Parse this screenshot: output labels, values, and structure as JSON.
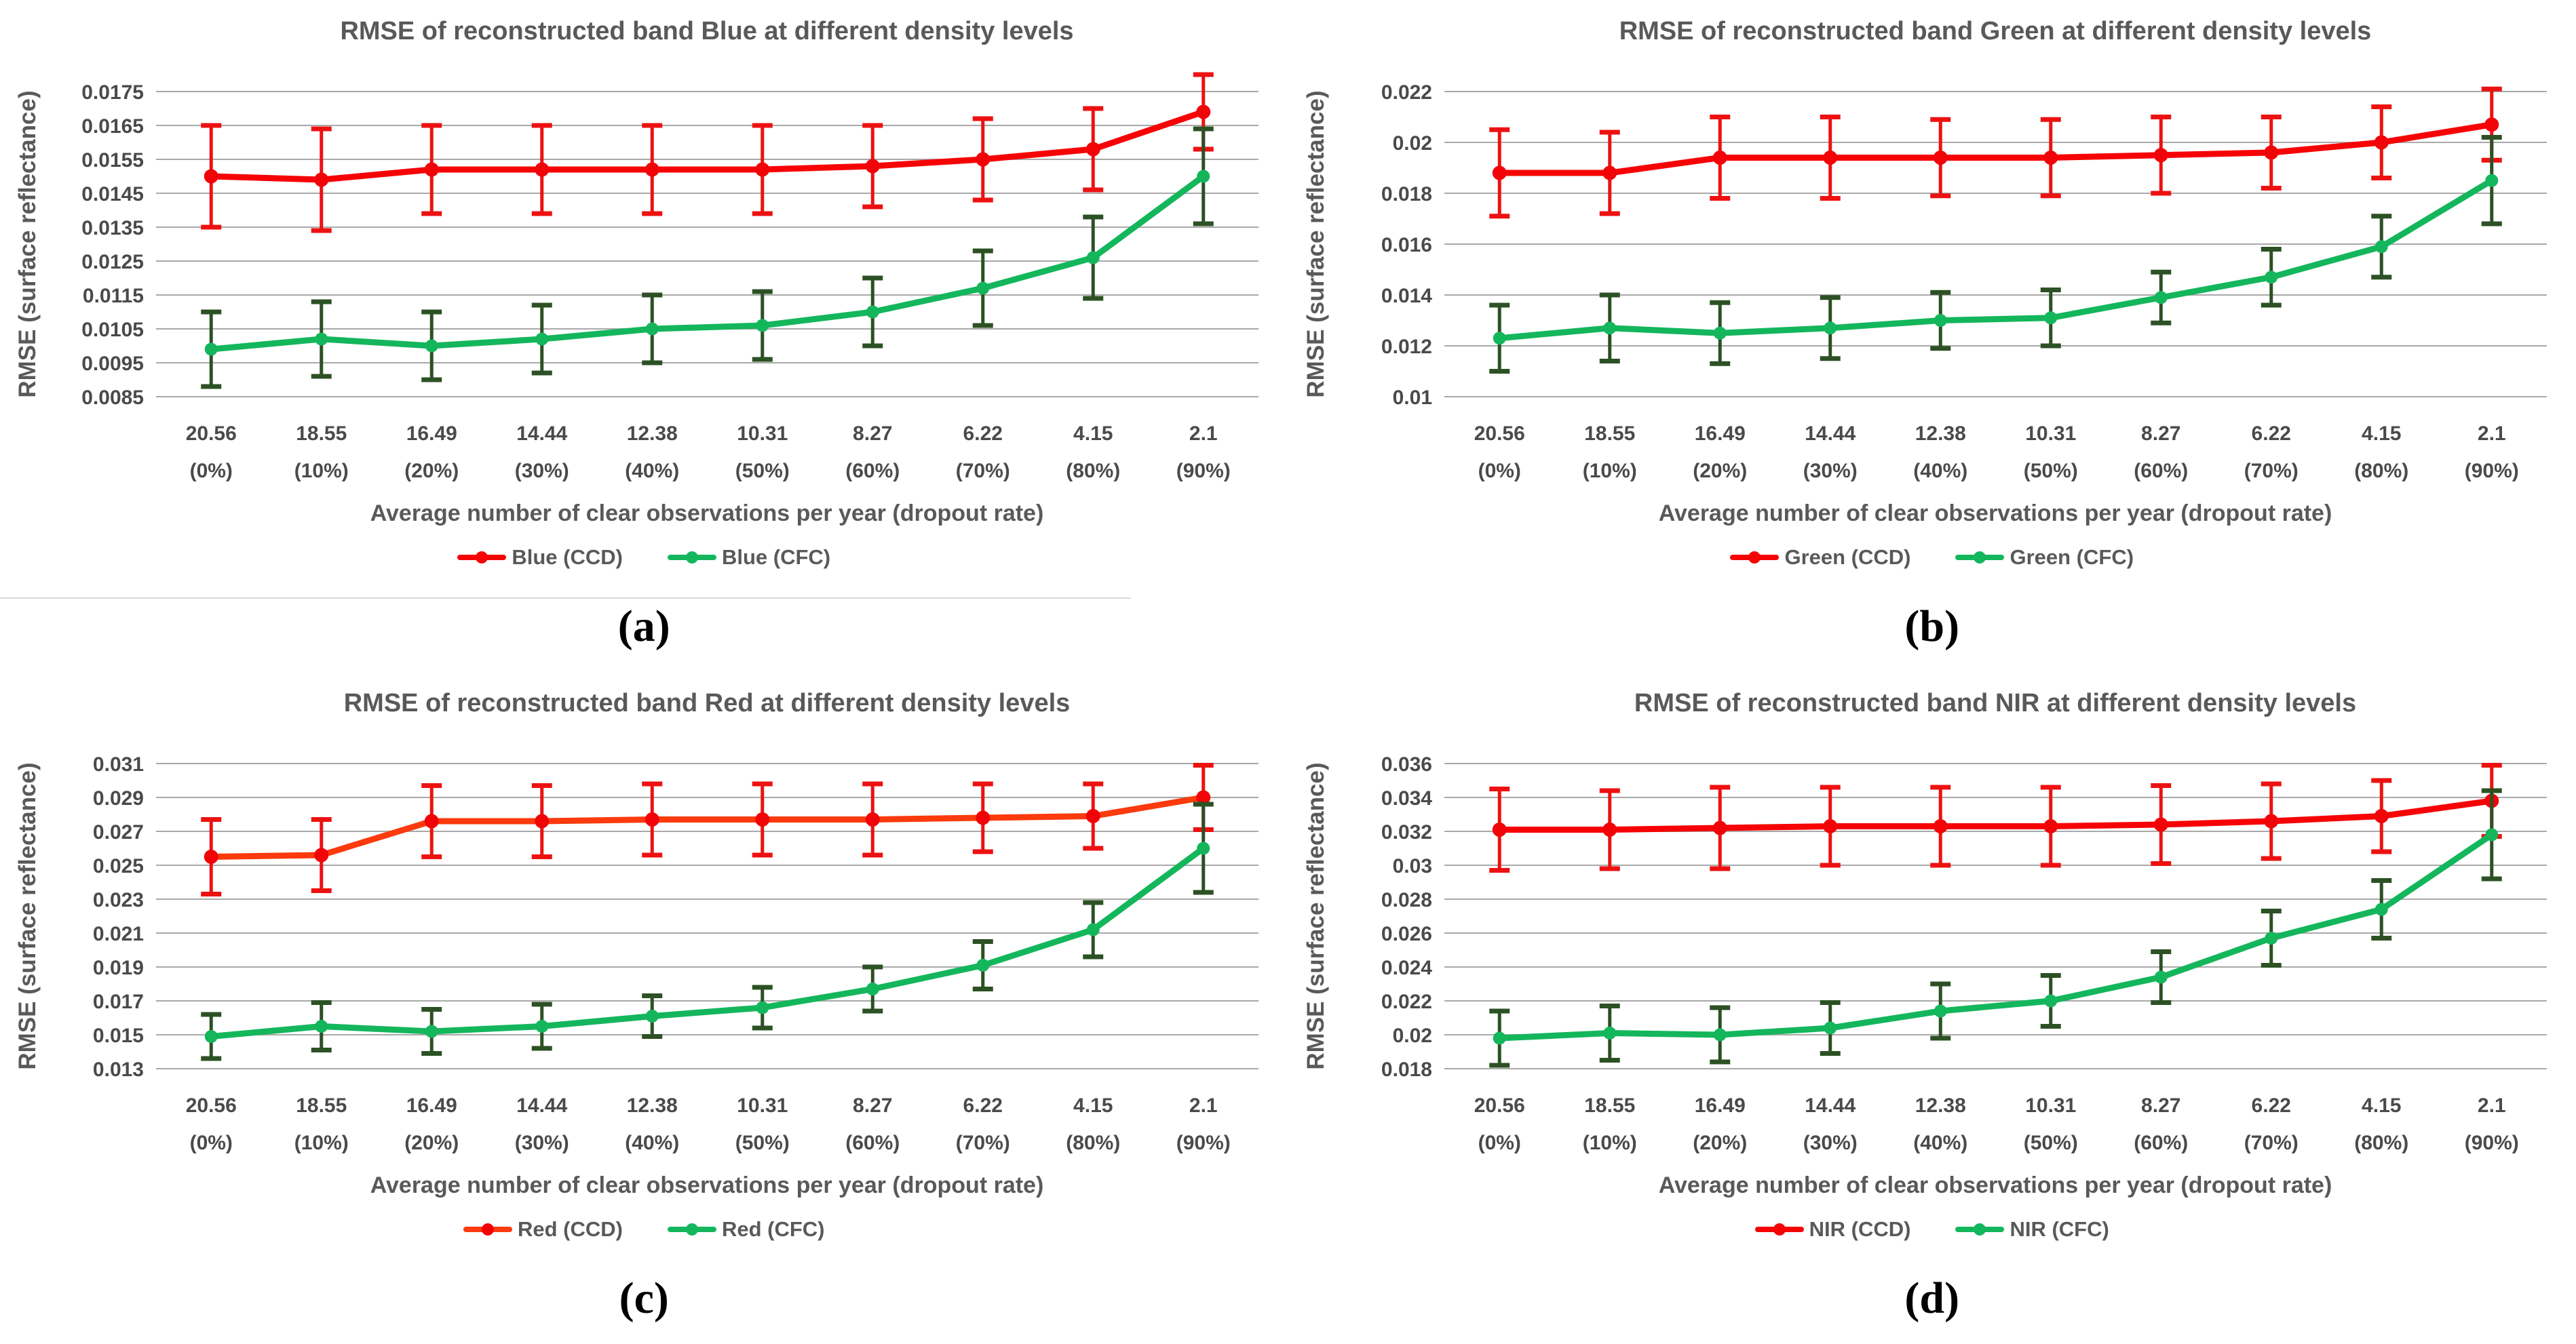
{
  "colors": {
    "grid": "#a9a9a9",
    "title_text": "#595959",
    "tick_text": "#4a4a4a",
    "divider": "#d9d9d9",
    "ccd_red": "#f60306",
    "cfc_green": "#14b65c",
    "cfc_errbar_dark_green": "#2c5124"
  },
  "chart_data": [
    {
      "type": "line",
      "title": "RMSE of reconstructed band Blue at different density levels",
      "xlabel": "Average number of clear observations per year (dropout rate)",
      "ylabel": "RMSE (surface reflectance)",
      "sublabel": "(a)",
      "grid": true,
      "legend_position": "bottom",
      "categories": [
        "20.56 (0%)",
        "18.55 (10%)",
        "16.49 (20%)",
        "14.44 (30%)",
        "12.38 (40%)",
        "10.31 (50%)",
        "8.27 (60%)",
        "6.22 (70%)",
        "4.15 (80%)",
        "2.1 (90%)"
      ],
      "ylim": [
        0.0085,
        0.0175
      ],
      "y_ticks": [
        "0.0175",
        "0.0165",
        "0.0155",
        "0.0145",
        "0.0135",
        "0.0125",
        "0.0115",
        "0.0105",
        "0.0095",
        "0.0085"
      ],
      "series": [
        {
          "name": "Blue (CCD)",
          "line_color": "#f60306",
          "marker_color": "#f10408",
          "errbar_color": "#ed1111",
          "values": [
            0.015,
            0.0149,
            0.0152,
            0.0152,
            0.0152,
            0.0152,
            0.0153,
            0.0155,
            0.0158,
            0.0169
          ],
          "errors": [
            0.0015,
            0.0015,
            0.0013,
            0.0013,
            0.0013,
            0.0013,
            0.0012,
            0.0012,
            0.0012,
            0.0011
          ]
        },
        {
          "name": "Blue (CFC)",
          "line_color": "#14b65c",
          "marker_color": "#14b65c",
          "errbar_color": "#2c5124",
          "values": [
            0.0099,
            0.0102,
            0.01,
            0.0102,
            0.0105,
            0.0106,
            0.011,
            0.0117,
            0.0126,
            0.015
          ],
          "errors": [
            0.0011,
            0.0011,
            0.001,
            0.001,
            0.001,
            0.001,
            0.001,
            0.0011,
            0.0012,
            0.0014
          ]
        }
      ]
    },
    {
      "type": "line",
      "title": "RMSE of reconstructed band Green at different density levels",
      "xlabel": "Average number of clear observations per year (dropout rate)",
      "ylabel": "RMSE (surface reflectance)",
      "sublabel": "(b)",
      "grid": true,
      "legend_position": "bottom",
      "categories": [
        "20.56 (0%)",
        "18.55 (10%)",
        "16.49 (20%)",
        "14.44 (30%)",
        "12.38 (40%)",
        "10.31 (50%)",
        "8.27 (60%)",
        "6.22 (70%)",
        "4.15 (80%)",
        "2.1 (90%)"
      ],
      "ylim": [
        0.01,
        0.022
      ],
      "y_ticks": [
        "0.022",
        "0.02",
        "0.018",
        "0.016",
        "0.014",
        "0.012",
        "0.01"
      ],
      "series": [
        {
          "name": "Green (CCD)",
          "line_color": "#f60306",
          "marker_color": "#f10408",
          "errbar_color": "#ed1111",
          "values": [
            0.0188,
            0.0188,
            0.0194,
            0.0194,
            0.0194,
            0.0194,
            0.0195,
            0.0196,
            0.02,
            0.0207
          ],
          "errors": [
            0.0017,
            0.0016,
            0.0016,
            0.0016,
            0.0015,
            0.0015,
            0.0015,
            0.0014,
            0.0014,
            0.0014
          ]
        },
        {
          "name": "Green (CFC)",
          "line_color": "#14b65c",
          "marker_color": "#14b65c",
          "errbar_color": "#2c5124",
          "values": [
            0.0123,
            0.0127,
            0.0125,
            0.0127,
            0.013,
            0.0131,
            0.0139,
            0.0147,
            0.0159,
            0.0185
          ],
          "errors": [
            0.0013,
            0.0013,
            0.0012,
            0.0012,
            0.0011,
            0.0011,
            0.001,
            0.0011,
            0.0012,
            0.0017
          ]
        }
      ]
    },
    {
      "type": "line",
      "title": "RMSE of reconstructed band Red at different density levels",
      "xlabel": "Average number of clear observations per year (dropout rate)",
      "ylabel": "RMSE (surface reflectance)",
      "sublabel": "(c)",
      "grid": true,
      "legend_position": "bottom",
      "categories": [
        "20.56 (0%)",
        "18.55 (10%)",
        "16.49 (20%)",
        "14.44 (30%)",
        "12.38 (40%)",
        "10.31 (50%)",
        "8.27 (60%)",
        "6.22 (70%)",
        "4.15 (80%)",
        "2.1 (90%)"
      ],
      "ylim": [
        0.013,
        0.031
      ],
      "y_ticks": [
        "0.031",
        "0.029",
        "0.027",
        "0.025",
        "0.023",
        "0.021",
        "0.019",
        "0.017",
        "0.015",
        "0.013"
      ],
      "series": [
        {
          "name": "Red (CCD)",
          "line_color": "#fb3a0d",
          "marker_color": "#f10408",
          "errbar_color": "#ed1111",
          "values": [
            0.0255,
            0.0256,
            0.0276,
            0.0276,
            0.0277,
            0.0277,
            0.0277,
            0.0278,
            0.0279,
            0.029
          ],
          "errors": [
            0.0022,
            0.0021,
            0.0021,
            0.0021,
            0.0021,
            0.0021,
            0.0021,
            0.002,
            0.0019,
            0.0019
          ]
        },
        {
          "name": "Red (CFC)",
          "line_color": "#14b65c",
          "marker_color": "#14b65c",
          "errbar_color": "#2c5124",
          "values": [
            0.0149,
            0.0155,
            0.0152,
            0.0155,
            0.0161,
            0.0166,
            0.0177,
            0.0191,
            0.0212,
            0.026
          ],
          "errors": [
            0.0013,
            0.0014,
            0.0013,
            0.0013,
            0.0012,
            0.0012,
            0.0013,
            0.0014,
            0.0016,
            0.0026
          ]
        }
      ]
    },
    {
      "type": "line",
      "title": "RMSE of reconstructed band NIR at different density levels",
      "xlabel": "Average number of clear observations per year (dropout rate)",
      "ylabel": "RMSE (surface reflectance)",
      "sublabel": "(d)",
      "grid": true,
      "legend_position": "bottom",
      "categories": [
        "20.56 (0%)",
        "18.55 (10%)",
        "16.49 (20%)",
        "14.44 (30%)",
        "12.38 (40%)",
        "10.31 (50%)",
        "8.27 (60%)",
        "6.22 (70%)",
        "4.15 (80%)",
        "2.1 (90%)"
      ],
      "ylim": [
        0.018,
        0.036
      ],
      "y_ticks": [
        "0.036",
        "0.034",
        "0.032",
        "0.03",
        "0.028",
        "0.026",
        "0.024",
        "0.022",
        "0.02",
        "0.018"
      ],
      "series": [
        {
          "name": "NIR (CCD)",
          "line_color": "#f60306",
          "marker_color": "#f10408",
          "errbar_color": "#ed1111",
          "values": [
            0.0321,
            0.0321,
            0.0322,
            0.0323,
            0.0323,
            0.0323,
            0.0324,
            0.0326,
            0.0329,
            0.0338
          ],
          "errors": [
            0.0024,
            0.0023,
            0.0024,
            0.0023,
            0.0023,
            0.0023,
            0.0023,
            0.0022,
            0.0021,
            0.0021
          ]
        },
        {
          "name": "NIR (CFC)",
          "line_color": "#14b65c",
          "marker_color": "#14b65c",
          "errbar_color": "#2c5124",
          "values": [
            0.0198,
            0.0201,
            0.02,
            0.0204,
            0.0214,
            0.022,
            0.0234,
            0.0257,
            0.0274,
            0.0318
          ],
          "errors": [
            0.0016,
            0.0016,
            0.0016,
            0.0015,
            0.0016,
            0.0015,
            0.0015,
            0.0016,
            0.0017,
            0.0026
          ]
        }
      ]
    }
  ]
}
